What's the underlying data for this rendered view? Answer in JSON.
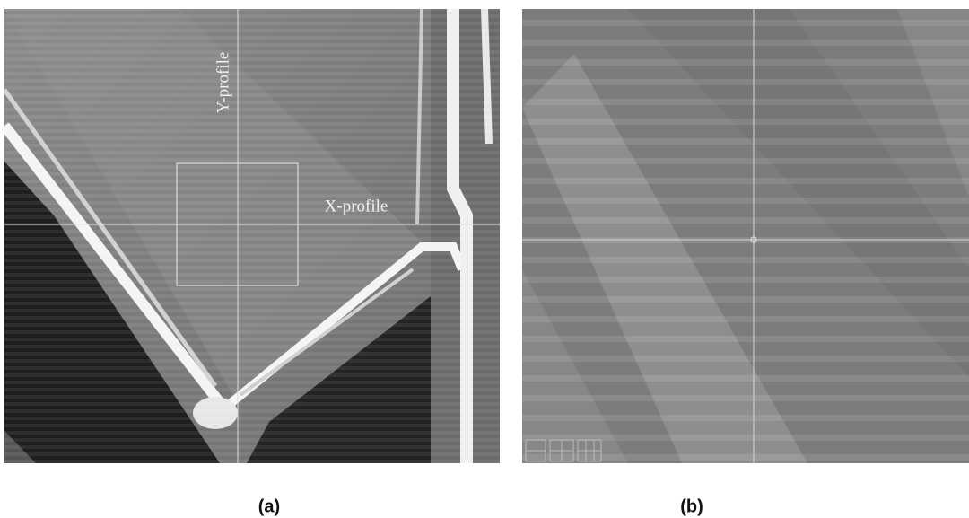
{
  "panels": [
    {
      "caption": "(a)",
      "annotations": [
        "Y-profile",
        "X-profile"
      ]
    },
    {
      "caption": "(b)"
    }
  ]
}
